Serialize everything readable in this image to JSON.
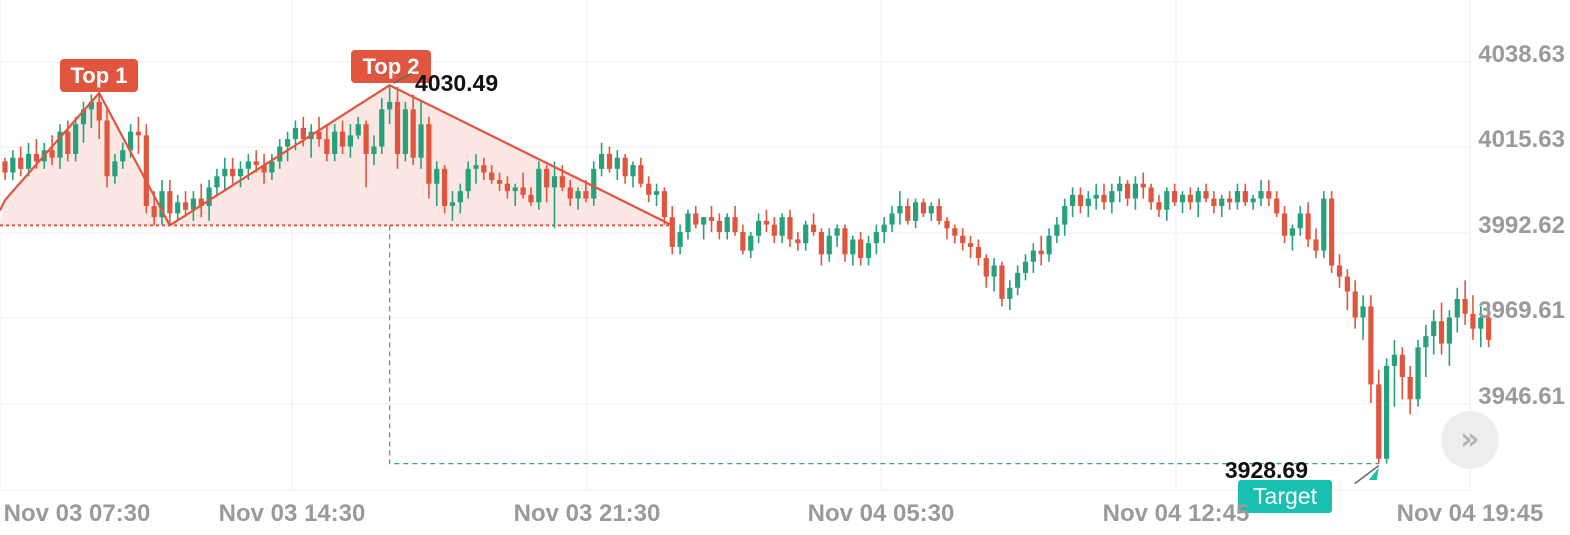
{
  "chart_data": {
    "type": "candlestick",
    "y_axis": {
      "ticks": [
        "4038.63",
        "4015.63",
        "3992.62",
        "3969.61",
        "3946.61"
      ],
      "side": "right"
    },
    "x_axis": {
      "ticks": [
        "Nov 03 07:30",
        "Nov 03 14:30",
        "Nov 03 21:30",
        "Nov 04 05:30",
        "Nov 04 12:45",
        "Nov 04 19:45"
      ]
    },
    "grid": true,
    "colors": {
      "up": "#26a17b",
      "down": "#e0553d",
      "pattern": "#e0553d",
      "target": "#19bfb0",
      "fill": "#fbe3df"
    },
    "pattern": {
      "name": "double top",
      "top1_label": "Top 1",
      "top2_label": "Top 2",
      "top2_value": "4030.49",
      "neckline": 3992.8,
      "points": [
        {
          "i": 0,
          "v": 3999.6
        },
        {
          "i": 12,
          "v": 4028.4
        },
        {
          "i": 21,
          "v": 3992.8
        },
        {
          "i": 49,
          "v": 4030.49
        },
        {
          "i": 85,
          "v": 3992.8
        }
      ],
      "target_label": "Target",
      "target_value": "3928.69",
      "target_num": 3928.69
    },
    "candles": [
      [
        4010,
        4011,
        4005,
        4007
      ],
      [
        4007,
        4013,
        4005,
        4011
      ],
      [
        4011,
        4014,
        4006,
        4008
      ],
      [
        4008,
        4015,
        4006,
        4012
      ],
      [
        4012,
        4016,
        4008,
        4010
      ],
      [
        4010,
        4015,
        4008,
        4013
      ],
      [
        4013,
        4017,
        4009,
        4011
      ],
      [
        4011,
        4020,
        4008,
        4018
      ],
      [
        4018,
        4021,
        4010,
        4012
      ],
      [
        4012,
        4022,
        4010,
        4020
      ],
      [
        4020,
        4026,
        4015,
        4024
      ],
      [
        4024,
        4028,
        4019,
        4026
      ],
      [
        4026,
        4028.4,
        4016,
        4021
      ],
      [
        4021,
        4024,
        4003,
        4006
      ],
      [
        4006,
        4012,
        4004,
        4010
      ],
      [
        4010,
        4015,
        4008,
        4013
      ],
      [
        4013,
        4020,
        4011,
        4018
      ],
      [
        4018,
        4022,
        4012,
        4017
      ],
      [
        4017,
        4020,
        3996,
        3998
      ],
      [
        3998,
        4002,
        3992.8,
        3995
      ],
      [
        3995,
        4005,
        3993,
        4002
      ],
      [
        4002,
        4005,
        3993,
        3996
      ],
      [
        3996,
        4001,
        3994,
        3999
      ],
      [
        3999,
        4002,
        3995,
        3997
      ],
      [
        3997,
        4002,
        3994,
        4000
      ],
      [
        4000,
        4004,
        3995,
        3998
      ],
      [
        3998,
        4005,
        3994,
        4003
      ],
      [
        4003,
        4008,
        4001,
        4006
      ],
      [
        4006,
        4011,
        4002,
        4008
      ],
      [
        4008,
        4011,
        4004,
        4006
      ],
      [
        4006,
        4010,
        4003,
        4008
      ],
      [
        4008,
        4012,
        4005,
        4010
      ],
      [
        4010,
        4013,
        4007,
        4009
      ],
      [
        4009,
        4012,
        4004,
        4007
      ],
      [
        4007,
        4012,
        4005,
        4010
      ],
      [
        4010,
        4016,
        4008,
        4014
      ],
      [
        4014,
        4018,
        4010,
        4016
      ],
      [
        4016,
        4021,
        4013,
        4019
      ],
      [
        4019,
        4022,
        4014,
        4016
      ],
      [
        4016,
        4020,
        4011,
        4018
      ],
      [
        4018,
        4022,
        4014,
        4016
      ],
      [
        4016,
        4020,
        4010,
        4012
      ],
      [
        4012,
        4020,
        4010,
        4018
      ],
      [
        4018,
        4021,
        4012,
        4014
      ],
      [
        4014,
        4020,
        4011,
        4017
      ],
      [
        4017,
        4022,
        4016,
        4020
      ],
      [
        4020,
        4021,
        4003,
        4012
      ],
      [
        4012,
        4017,
        4009,
        4014
      ],
      [
        4014,
        4027,
        4012,
        4024
      ],
      [
        4024,
        4030.49,
        4020,
        4026
      ],
      [
        4026,
        4030,
        4008,
        4012
      ],
      [
        4012,
        4026,
        4010,
        4024
      ],
      [
        4024,
        4028,
        4009,
        4011
      ],
      [
        4011,
        4026,
        4008,
        4020
      ],
      [
        4020,
        4022,
        4000,
        4004
      ],
      [
        4004,
        4010,
        3998,
        4008
      ],
      [
        4008,
        4009,
        3996,
        3998
      ],
      [
        3998,
        4002,
        3994,
        3999
      ],
      [
        3999,
        4004,
        3996,
        4002
      ],
      [
        4002,
        4010,
        4000,
        4008
      ],
      [
        4008,
        4012,
        4004,
        4009
      ],
      [
        4009,
        4011,
        4005,
        4007
      ],
      [
        4007,
        4009,
        4004,
        4005
      ],
      [
        4005,
        4007,
        4002,
        4004
      ],
      [
        4004,
        4006,
        4000,
        4002
      ],
      [
        4002,
        4004,
        3998,
        4003
      ],
      [
        4003,
        4007,
        4000,
        4001
      ],
      [
        4001,
        4003,
        3998,
        3999
      ],
      [
        3999,
        4010,
        3997,
        4008
      ],
      [
        4008,
        4009,
        3999,
        4003
      ],
      [
        4003,
        4010,
        3992,
        4006
      ],
      [
        4006,
        4009,
        4002,
        4003
      ],
      [
        4003,
        4005,
        3998,
        4000
      ],
      [
        4000,
        4003,
        3997,
        4002
      ],
      [
        4002,
        4005,
        3999,
        4000
      ],
      [
        4000,
        4010,
        3998,
        4008
      ],
      [
        4008,
        4015,
        4006,
        4012
      ],
      [
        4012,
        4014,
        4007,
        4008
      ],
      [
        4008,
        4013,
        4005,
        4011
      ],
      [
        4011,
        4012,
        4004,
        4006
      ],
      [
        4006,
        4010,
        4003,
        4009
      ],
      [
        4009,
        4011,
        4003,
        4004
      ],
      [
        4004,
        4006,
        3999,
        4001
      ],
      [
        4001,
        4004,
        3998,
        4002
      ],
      [
        4002,
        4003,
        3993,
        3995
      ],
      [
        3995,
        3998,
        3985,
        3987
      ],
      [
        3987,
        3993,
        3985,
        3991
      ],
      [
        3991,
        3997,
        3989,
        3996
      ],
      [
        3996,
        3998,
        3992,
        3993
      ],
      [
        3993,
        3995,
        3989,
        3995
      ],
      [
        3995,
        3998,
        3991,
        3994
      ],
      [
        3994,
        3996,
        3989,
        3991
      ],
      [
        3991,
        3996,
        3989,
        3995
      ],
      [
        3995,
        3998,
        3990,
        3991
      ],
      [
        3991,
        3993,
        3985,
        3986
      ],
      [
        3986,
        3991,
        3984,
        3990
      ],
      [
        3990,
        3996,
        3988,
        3994
      ],
      [
        3994,
        3997,
        3991,
        3993
      ],
      [
        3993,
        3995,
        3988,
        3990
      ],
      [
        3990,
        3996,
        3988,
        3995
      ],
      [
        3995,
        3997,
        3987,
        3989
      ],
      [
        3989,
        3991,
        3986,
        3988
      ],
      [
        3988,
        3994,
        3986,
        3993
      ],
      [
        3993,
        3996,
        3990,
        3991
      ],
      [
        3991,
        3992,
        3982,
        3985
      ],
      [
        3985,
        3992,
        3983,
        3990
      ],
      [
        3990,
        3993,
        3987,
        3992
      ],
      [
        3992,
        3993,
        3983,
        3985
      ],
      [
        3985,
        3990,
        3982,
        3989
      ],
      [
        3989,
        3991,
        3982,
        3984
      ],
      [
        3984,
        3990,
        3982,
        3988
      ],
      [
        3988,
        3993,
        3985,
        3991
      ],
      [
        3991,
        3995,
        3988,
        3993
      ],
      [
        3993,
        3998,
        3991,
        3996
      ],
      [
        3996,
        4002,
        3993,
        3998
      ],
      [
        3998,
        4000,
        3993,
        3994
      ],
      [
        3994,
        4000,
        3992,
        3999
      ],
      [
        3999,
        4000,
        3995,
        3996
      ],
      [
        3996,
        3999,
        3994,
        3998
      ],
      [
        3998,
        4000,
        3993,
        3994
      ],
      [
        3994,
        3995,
        3989,
        3992
      ],
      [
        3992,
        3993,
        3988,
        3990
      ],
      [
        3990,
        3992,
        3986,
        3988
      ],
      [
        3988,
        3990,
        3984,
        3987
      ],
      [
        3987,
        3989,
        3982,
        3984
      ],
      [
        3984,
        3985,
        3976,
        3979
      ],
      [
        3979,
        3984,
        3975,
        3982
      ],
      [
        3982,
        3983,
        3971,
        3973
      ],
      [
        3973,
        3978,
        3970,
        3976
      ],
      [
        3976,
        3982,
        3974,
        3980
      ],
      [
        3980,
        3985,
        3978,
        3983
      ],
      [
        3983,
        3988,
        3980,
        3986
      ],
      [
        3986,
        3990,
        3982,
        3985
      ],
      [
        3985,
        3992,
        3983,
        3990
      ],
      [
        3990,
        3995,
        3988,
        3993
      ],
      [
        3993,
        4000,
        3990,
        3998
      ],
      [
        3998,
        4003,
        3995,
        4001
      ],
      [
        4001,
        4003,
        3996,
        3998
      ],
      [
        3998,
        4002,
        3995,
        4000
      ],
      [
        4000,
        4004,
        3997,
        4001
      ],
      [
        4001,
        4004,
        3997,
        3999
      ],
      [
        3999,
        4004,
        3996,
        4002
      ],
      [
        4002,
        4006,
        3999,
        4004
      ],
      [
        4004,
        4005,
        3998,
        4000
      ],
      [
        4000,
        4006,
        3997,
        4004
      ],
      [
        4004,
        4007,
        4000,
        4003
      ],
      [
        4003,
        4004,
        3997,
        3999
      ],
      [
        3999,
        4001,
        3995,
        3997
      ],
      [
        3997,
        4003,
        3994,
        4002
      ],
      [
        4002,
        4004,
        3998,
        3999
      ],
      [
        3999,
        4002,
        3996,
        4001
      ],
      [
        4001,
        4003,
        3997,
        3999
      ],
      [
        3999,
        4003,
        3995,
        4002
      ],
      [
        4002,
        4004,
        3999,
        4000
      ],
      [
        4000,
        4002,
        3996,
        3998
      ],
      [
        3998,
        4001,
        3995,
        4000
      ],
      [
        4000,
        4002,
        3997,
        3999
      ],
      [
        3999,
        4004,
        3997,
        4002
      ],
      [
        4002,
        4004,
        3998,
        3999
      ],
      [
        3999,
        4001,
        3997,
        4000
      ],
      [
        4000,
        4005,
        3998,
        4002
      ],
      [
        4002,
        4005,
        3998,
        4000
      ],
      [
        4000,
        4002,
        3995,
        3996
      ],
      [
        3996,
        3998,
        3988,
        3990
      ],
      [
        3990,
        3993,
        3986,
        3992
      ],
      [
        3992,
        3998,
        3990,
        3996
      ],
      [
        3996,
        3999,
        3987,
        3989
      ],
      [
        3989,
        3992,
        3984,
        3986
      ],
      [
        3986,
        4002,
        3984,
        4000
      ],
      [
        4000,
        4002,
        3980,
        3982
      ],
      [
        3982,
        3985,
        3976,
        3979
      ],
      [
        3979,
        3981,
        3970,
        3975
      ],
      [
        3975,
        3978,
        3965,
        3968
      ],
      [
        3968,
        3974,
        3962,
        3971
      ],
      [
        3971,
        3974,
        3945,
        3950
      ],
      [
        3950,
        3954,
        3928.69,
        3930
      ],
      [
        3930,
        3957,
        3928.69,
        3955
      ],
      [
        3955,
        3962,
        3944,
        3958
      ],
      [
        3958,
        3960,
        3946,
        3952
      ],
      [
        3952,
        3955,
        3942,
        3946
      ],
      [
        3946,
        3962,
        3944,
        3960
      ],
      [
        3960,
        3966,
        3952,
        3963
      ],
      [
        3963,
        3970,
        3958,
        3967
      ],
      [
        3967,
        3972,
        3958,
        3961
      ],
      [
        3961,
        3970,
        3955,
        3968
      ],
      [
        3968,
        3976,
        3964,
        3973
      ],
      [
        3973,
        3978,
        3966,
        3969
      ],
      [
        3969,
        3974,
        3962,
        3965
      ],
      [
        3965,
        3971,
        3960,
        3968
      ],
      [
        3968,
        3972,
        3960,
        3962
      ]
    ]
  },
  "controls": {
    "scroll_icon": "chevron-double-right-icon",
    "scroll_glyph": "»"
  }
}
